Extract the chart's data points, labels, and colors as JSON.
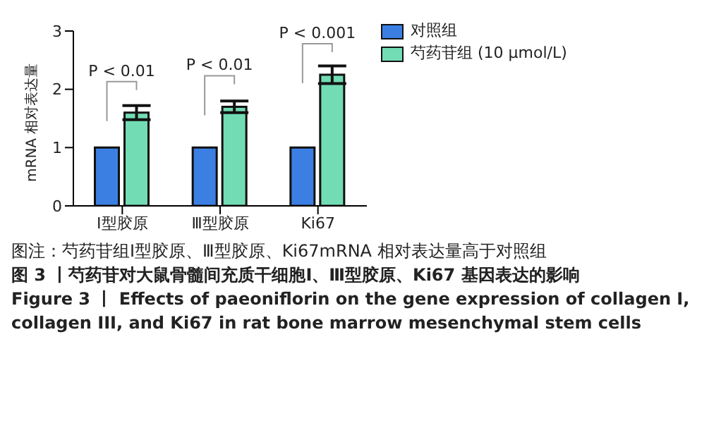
{
  "chart_data": {
    "type": "bar",
    "title": "图 3 丨芍药苷对大鼠骨髓间充质干细胞Ⅰ、Ⅲ型胶原、Ki67 基因表达的影响",
    "subtitle": "Figure 3 丨 Effects of paeoniflorin on the gene expression of collagen I, collagen III, and Ki67 in rat bone marrow mesenchymal stem cells",
    "ylabel": "mRNA 相对表达量",
    "categories": [
      "Ⅰ型胶原",
      "Ⅲ型胶原",
      "Ki67"
    ],
    "series": [
      {
        "name": "对照组",
        "color": "#3b7fe3",
        "values": [
          1,
          1,
          1
        ]
      },
      {
        "name": "芍药苷组 (10 μmol/L)",
        "color": "#72dcb4",
        "values": [
          1.6,
          1.7,
          2.25
        ],
        "errors": [
          0.12,
          0.1,
          0.15
        ]
      }
    ],
    "ylim": [
      0,
      3
    ],
    "yticks": [
      0,
      1,
      2,
      3
    ],
    "grid": false,
    "legend": "top right",
    "annotations": [
      "P < 0.01",
      "P < 0.01",
      "P < 0.001",
      "图注：芍药苷组Ⅰ型胶原、Ⅲ型胶原、Ki67mRNA 相对表达量高于对照组"
    ]
  }
}
